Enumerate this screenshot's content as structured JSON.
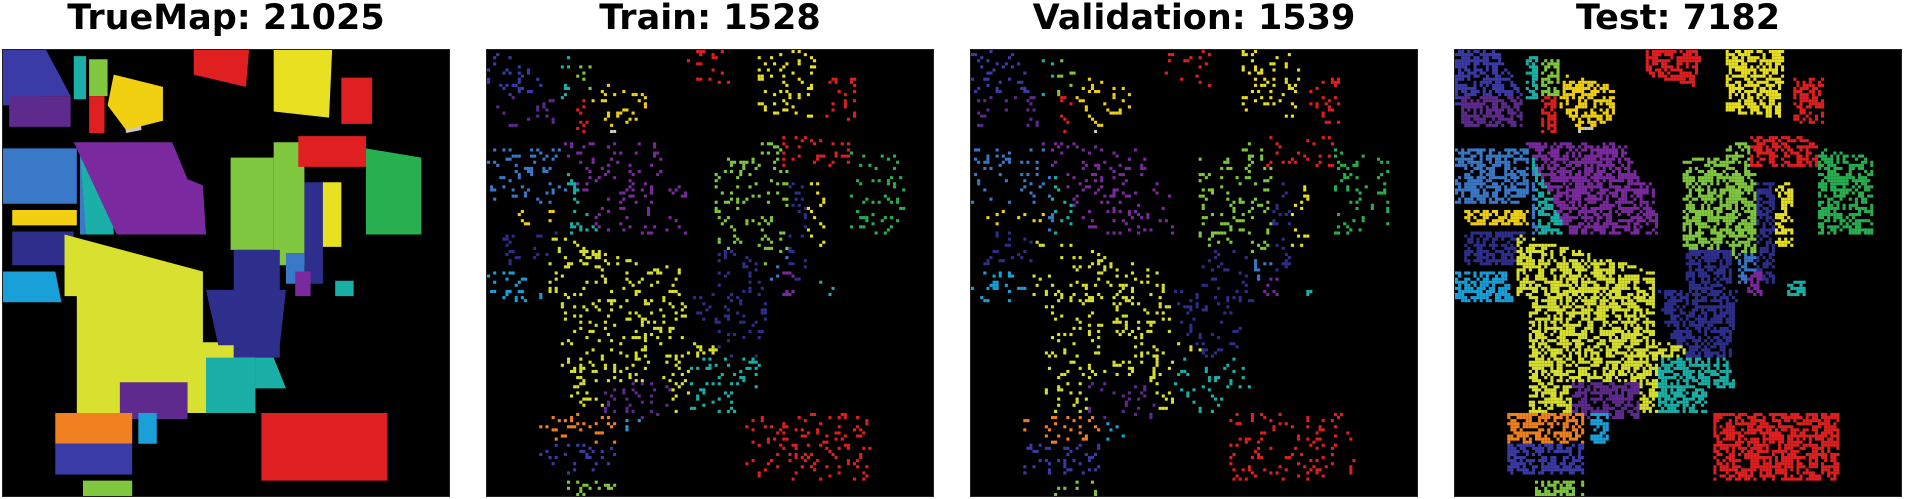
{
  "panels": [
    {
      "title": "TrueMap: 21025",
      "mode": "full"
    },
    {
      "title": "Train: 1528",
      "mode": "sparse"
    },
    {
      "title": "Validation: 1539",
      "mode": "sparse"
    },
    {
      "title": "Test: 7182",
      "mode": "dense"
    }
  ],
  "colors": {
    "background": "#000000",
    "classes": [
      "#2e2e8c",
      "#3b3ba8",
      "#5e2a8e",
      "#7a2a9e",
      "#3a78c8",
      "#1aa0d8",
      "#1ab0a8",
      "#28b050",
      "#80c840",
      "#d8e030",
      "#e8e020",
      "#f0d010",
      "#f08020",
      "#e02020",
      "#c8c8c8",
      "#6030a0"
    ]
  }
}
